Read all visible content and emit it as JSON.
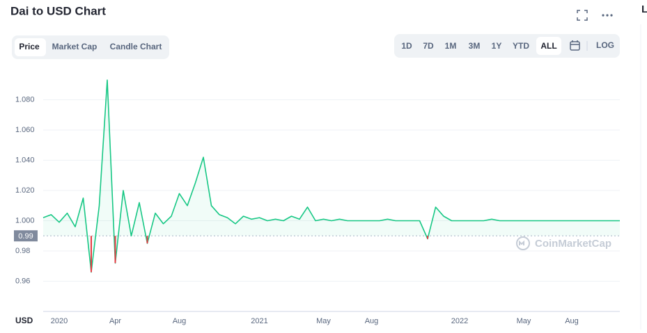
{
  "header": {
    "title": "Dai to USD Chart",
    "tabs": [
      "Price",
      "Market Cap",
      "Candle Chart"
    ],
    "ranges": [
      "1D",
      "7D",
      "1M",
      "3M",
      "1Y",
      "YTD",
      "ALL"
    ],
    "log": "LOG",
    "side_letter": "L"
  },
  "chart_data": {
    "type": "line",
    "watermark": "CoinMarketCap",
    "currency": "USD",
    "categories": [
      null,
      null,
      "2020",
      null,
      null,
      null,
      null,
      null,
      null,
      "Apr",
      null,
      null,
      null,
      null,
      null,
      null,
      null,
      "Aug",
      null,
      null,
      null,
      null,
      null,
      null,
      null,
      null,
      null,
      "2021",
      null,
      null,
      null,
      null,
      null,
      null,
      null,
      "May",
      null,
      null,
      null,
      null,
      null,
      "Aug",
      null,
      null,
      null,
      null,
      null,
      null,
      null,
      null,
      null,
      null,
      "2022",
      null,
      null,
      null,
      null,
      null,
      null,
      null,
      "May",
      null,
      null,
      null,
      null,
      null,
      "Aug",
      null,
      null,
      null,
      null,
      null,
      null
    ],
    "series": [
      {
        "name": "Price",
        "color": "#16c784",
        "below_color": "#ea3943",
        "values": [
          1.002,
          1.004,
          0.999,
          1.005,
          0.996,
          1.015,
          0.966,
          1.01,
          1.093,
          0.972,
          1.02,
          0.99,
          1.012,
          0.985,
          1.005,
          0.998,
          1.003,
          1.018,
          1.01,
          1.025,
          1.042,
          1.01,
          1.004,
          1.002,
          0.998,
          1.003,
          1.001,
          1.002,
          1.0,
          1.001,
          1.0,
          1.003,
          1.001,
          1.009,
          1.0,
          1.001,
          1.0,
          1.001,
          1.0,
          1.0,
          1.0,
          1.0,
          1.0,
          1.001,
          1.0,
          1.0,
          1.0,
          1.0,
          0.988,
          1.009,
          1.003,
          1.0,
          1.0,
          1.0,
          1.0,
          1.0,
          1.001,
          1.0,
          1.0,
          1.0,
          1.0,
          1.0,
          1.0,
          1.0,
          1.0,
          1.0,
          1.0,
          1.0,
          1.0,
          1.0,
          1.0,
          1.0,
          1.0
        ]
      }
    ],
    "baseline": {
      "value": 0.99,
      "label": "0.99"
    },
    "ylim": [
      0.94,
      1.1
    ],
    "yticks": [
      0.96,
      0.98,
      {
        "value": 1.0,
        "label": "1.000"
      },
      {
        "value": 1.02,
        "label": "1.020"
      },
      {
        "value": 1.04,
        "label": "1.040"
      },
      {
        "value": 1.06,
        "label": "1.060"
      },
      {
        "value": 1.08,
        "label": "1.080"
      }
    ],
    "grid": true
  }
}
